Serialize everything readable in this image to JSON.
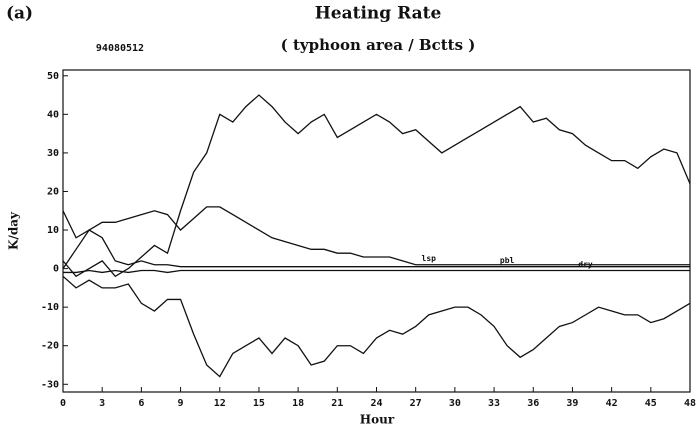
{
  "chart_data": {
    "type": "line",
    "panel": "(a)",
    "title": "Heating Rate",
    "subtitle": "( typhoon area / Bctts )",
    "annotation": "94080512",
    "xlabel": "Hour",
    "ylabel": "K/day",
    "xlim": [
      0,
      48
    ],
    "ylim": [
      -32,
      51.5
    ],
    "xticks": [
      0,
      3,
      6,
      9,
      12,
      15,
      18,
      21,
      24,
      27,
      30,
      33,
      36,
      39,
      42,
      45,
      48
    ],
    "yticks": [
      -30,
      -20,
      -10,
      0,
      10,
      20,
      30,
      40,
      50
    ],
    "x": [
      0,
      1,
      2,
      3,
      4,
      5,
      6,
      7,
      8,
      9,
      10,
      11,
      12,
      13,
      14,
      15,
      16,
      17,
      18,
      19,
      20,
      21,
      22,
      23,
      24,
      25,
      26,
      27,
      28,
      29,
      30,
      31,
      32,
      33,
      34,
      35,
      36,
      37,
      38,
      39,
      40,
      41,
      42,
      43,
      44,
      45,
      46,
      47,
      48
    ],
    "series": [
      {
        "color": "#111111",
        "values": [
          2,
          -2,
          0,
          2,
          -2,
          0,
          3,
          6,
          4,
          15,
          25,
          30,
          40,
          38,
          42,
          45,
          42,
          38,
          35,
          38,
          40,
          34,
          36,
          38,
          40,
          38,
          35,
          36,
          33,
          30,
          32,
          34,
          36,
          38,
          40,
          42,
          38,
          39,
          36,
          35,
          32,
          30,
          28,
          28,
          26,
          29,
          31,
          30,
          22
        ]
      },
      {
        "color": "#111111",
        "values": [
          -2,
          -5,
          -3,
          -5,
          -5,
          -4,
          -9,
          -11,
          -8,
          -8,
          -17,
          -25,
          -28,
          -22,
          -20,
          -18,
          -22,
          -18,
          -20,
          -25,
          -24,
          -20,
          -20,
          -22,
          -18,
          -16,
          -17,
          -15,
          -12,
          -11,
          -10,
          -10,
          -12,
          -15,
          -20,
          -23,
          -21,
          -18,
          -15,
          -14,
          -12,
          -10,
          -11,
          -12,
          -12,
          -14,
          -13,
          -11,
          -9
        ]
      },
      {
        "name": "lsp",
        "color": "#111111",
        "values": [
          15,
          8,
          10,
          12,
          12,
          13,
          14,
          15,
          14,
          10,
          13,
          16,
          16,
          14,
          12,
          10,
          8,
          7,
          6,
          5,
          5,
          4,
          4,
          3,
          3,
          3,
          2,
          1,
          1,
          1,
          1,
          1,
          1,
          1,
          1,
          1,
          1,
          1,
          1,
          1,
          1,
          1,
          1,
          1,
          1,
          1,
          1,
          1,
          1
        ]
      },
      {
        "name": "pbl",
        "color": "#111111",
        "values": [
          0,
          5,
          10,
          8,
          2,
          1,
          2,
          1,
          1,
          0.5,
          0.5,
          0.5,
          0.5,
          0.5,
          0.5,
          0.5,
          0.5,
          0.5,
          0.5,
          0.5,
          0.5,
          0.5,
          0.5,
          0.5,
          0.5,
          0.5,
          0.5,
          0.5,
          0.5,
          0.5,
          0.5,
          0.5,
          0.5,
          0.5,
          0.5,
          0.5,
          0.5,
          0.5,
          0.5,
          0.5,
          0.5,
          0.5,
          0.5,
          0.5,
          0.5,
          0.5,
          0.5,
          0.5,
          0.5
        ]
      },
      {
        "name": "dry",
        "color": "#111111",
        "values": [
          -1,
          -1,
          -0.5,
          -1,
          -0.5,
          -1,
          -0.5,
          -0.5,
          -1,
          -0.5,
          -0.5,
          -0.5,
          -0.5,
          -0.5,
          -0.5,
          -0.5,
          -0.5,
          -0.5,
          -0.5,
          -0.5,
          -0.5,
          -0.5,
          -0.5,
          -0.5,
          -0.5,
          -0.5,
          -0.5,
          -0.5,
          -0.5,
          -0.5,
          -0.5,
          -0.5,
          -0.5,
          -0.5,
          -0.5,
          -0.5,
          -0.5,
          -0.5,
          -0.5,
          -0.5,
          -0.5,
          -0.5,
          -0.5,
          -0.5,
          -0.5,
          -0.5,
          -0.5,
          -0.5,
          -0.5
        ]
      }
    ]
  }
}
